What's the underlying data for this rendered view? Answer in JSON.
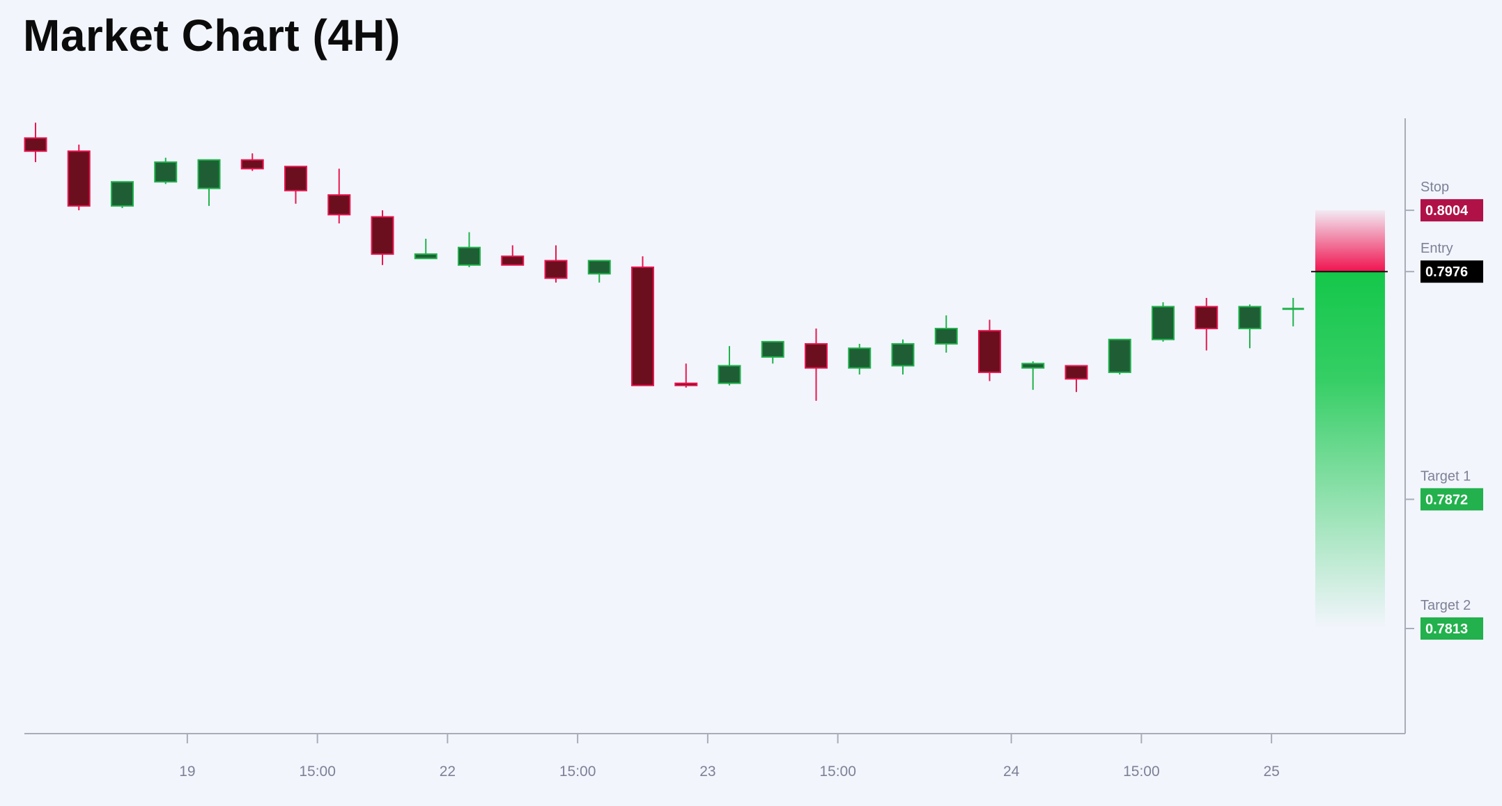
{
  "title": "Market Chart (4H)",
  "chart_data": {
    "type": "candlestick",
    "timeframe": "4H",
    "ylim": [
      0.7765,
      0.8046
    ],
    "x_ticks": [
      {
        "index": 3.5,
        "label": "19"
      },
      {
        "index": 6.5,
        "label": "15:00"
      },
      {
        "index": 9.5,
        "label": "22"
      },
      {
        "index": 12.5,
        "label": "15:00"
      },
      {
        "index": 15.5,
        "label": "23"
      },
      {
        "index": 18.5,
        "label": "15:00"
      },
      {
        "index": 22.5,
        "label": "24"
      },
      {
        "index": 25.5,
        "label": "15:00"
      },
      {
        "index": 28.5,
        "label": "25"
      }
    ],
    "candles": [
      {
        "o": 0.8037,
        "h": 0.8044,
        "l": 0.8026,
        "c": 0.8031
      },
      {
        "o": 0.8031,
        "h": 0.8034,
        "l": 0.8004,
        "c": 0.8006
      },
      {
        "o": 0.8006,
        "h": 0.8017,
        "l": 0.8005,
        "c": 0.8017
      },
      {
        "o": 0.8017,
        "h": 0.8028,
        "l": 0.8016,
        "c": 0.8026
      },
      {
        "o": 0.8014,
        "h": 0.8027,
        "l": 0.8006,
        "c": 0.8027
      },
      {
        "o": 0.8027,
        "h": 0.803,
        "l": 0.8022,
        "c": 0.8023
      },
      {
        "o": 0.8024,
        "h": 0.8024,
        "l": 0.8007,
        "c": 0.8013
      },
      {
        "o": 0.8011,
        "h": 0.8023,
        "l": 0.7998,
        "c": 0.8002
      },
      {
        "o": 0.8001,
        "h": 0.8004,
        "l": 0.7979,
        "c": 0.7984
      },
      {
        "o": 0.7982,
        "h": 0.7991,
        "l": 0.7982,
        "c": 0.7984
      },
      {
        "o": 0.7979,
        "h": 0.7994,
        "l": 0.7978,
        "c": 0.7987
      },
      {
        "o": 0.7983,
        "h": 0.7988,
        "l": 0.7979,
        "c": 0.7979
      },
      {
        "o": 0.7981,
        "h": 0.7988,
        "l": 0.7971,
        "c": 0.7973
      },
      {
        "o": 0.7975,
        "h": 0.798,
        "l": 0.7971,
        "c": 0.7981
      },
      {
        "o": 0.7978,
        "h": 0.7983,
        "l": 0.7925,
        "c": 0.7924
      },
      {
        "o": 0.7925,
        "h": 0.7934,
        "l": 0.7923,
        "c": 0.7924
      },
      {
        "o": 0.7925,
        "h": 0.7942,
        "l": 0.7924,
        "c": 0.7933
      },
      {
        "o": 0.7937,
        "h": 0.7944,
        "l": 0.7934,
        "c": 0.7944
      },
      {
        "o": 0.7943,
        "h": 0.795,
        "l": 0.7917,
        "c": 0.7932
      },
      {
        "o": 0.7932,
        "h": 0.7943,
        "l": 0.7929,
        "c": 0.7941
      },
      {
        "o": 0.7933,
        "h": 0.7945,
        "l": 0.7929,
        "c": 0.7943
      },
      {
        "o": 0.7943,
        "h": 0.7956,
        "l": 0.7939,
        "c": 0.795
      },
      {
        "o": 0.7949,
        "h": 0.7954,
        "l": 0.7926,
        "c": 0.793
      },
      {
        "o": 0.7932,
        "h": 0.7935,
        "l": 0.7922,
        "c": 0.7934
      },
      {
        "o": 0.7933,
        "h": 0.7933,
        "l": 0.7921,
        "c": 0.7927
      },
      {
        "o": 0.793,
        "h": 0.7945,
        "l": 0.7929,
        "c": 0.7945
      },
      {
        "o": 0.7945,
        "h": 0.7962,
        "l": 0.7944,
        "c": 0.796
      },
      {
        "o": 0.796,
        "h": 0.7964,
        "l": 0.794,
        "c": 0.795
      },
      {
        "o": 0.795,
        "h": 0.7961,
        "l": 0.7941,
        "c": 0.796
      },
      {
        "o": 0.7959,
        "h": 0.7964,
        "l": 0.7951,
        "c": 0.7959
      }
    ],
    "trade_levels": [
      {
        "name": "Stop",
        "value": 0.8004,
        "display": "0.8004",
        "color": "#b01248"
      },
      {
        "name": "Entry",
        "value": 0.7976,
        "display": "0.7976",
        "color": "#000000"
      },
      {
        "name": "Target 1",
        "value": 0.7872,
        "display": "0.7872",
        "color": "#22b14c"
      },
      {
        "name": "Target 2",
        "value": 0.7813,
        "display": "0.7813",
        "color": "#22b14c"
      }
    ],
    "risk_zone": {
      "from": 0.7976,
      "to": 0.8004,
      "color": "#f0134f"
    },
    "reward_zone": {
      "from": 0.7976,
      "to": 0.7813,
      "color": "#14c74a"
    },
    "colors": {
      "up_body": "#1f5e34",
      "up_border": "#1fb24b",
      "down_body": "#6b0f1e",
      "down_border": "#e8164f",
      "axis": "#a9acb8"
    }
  }
}
